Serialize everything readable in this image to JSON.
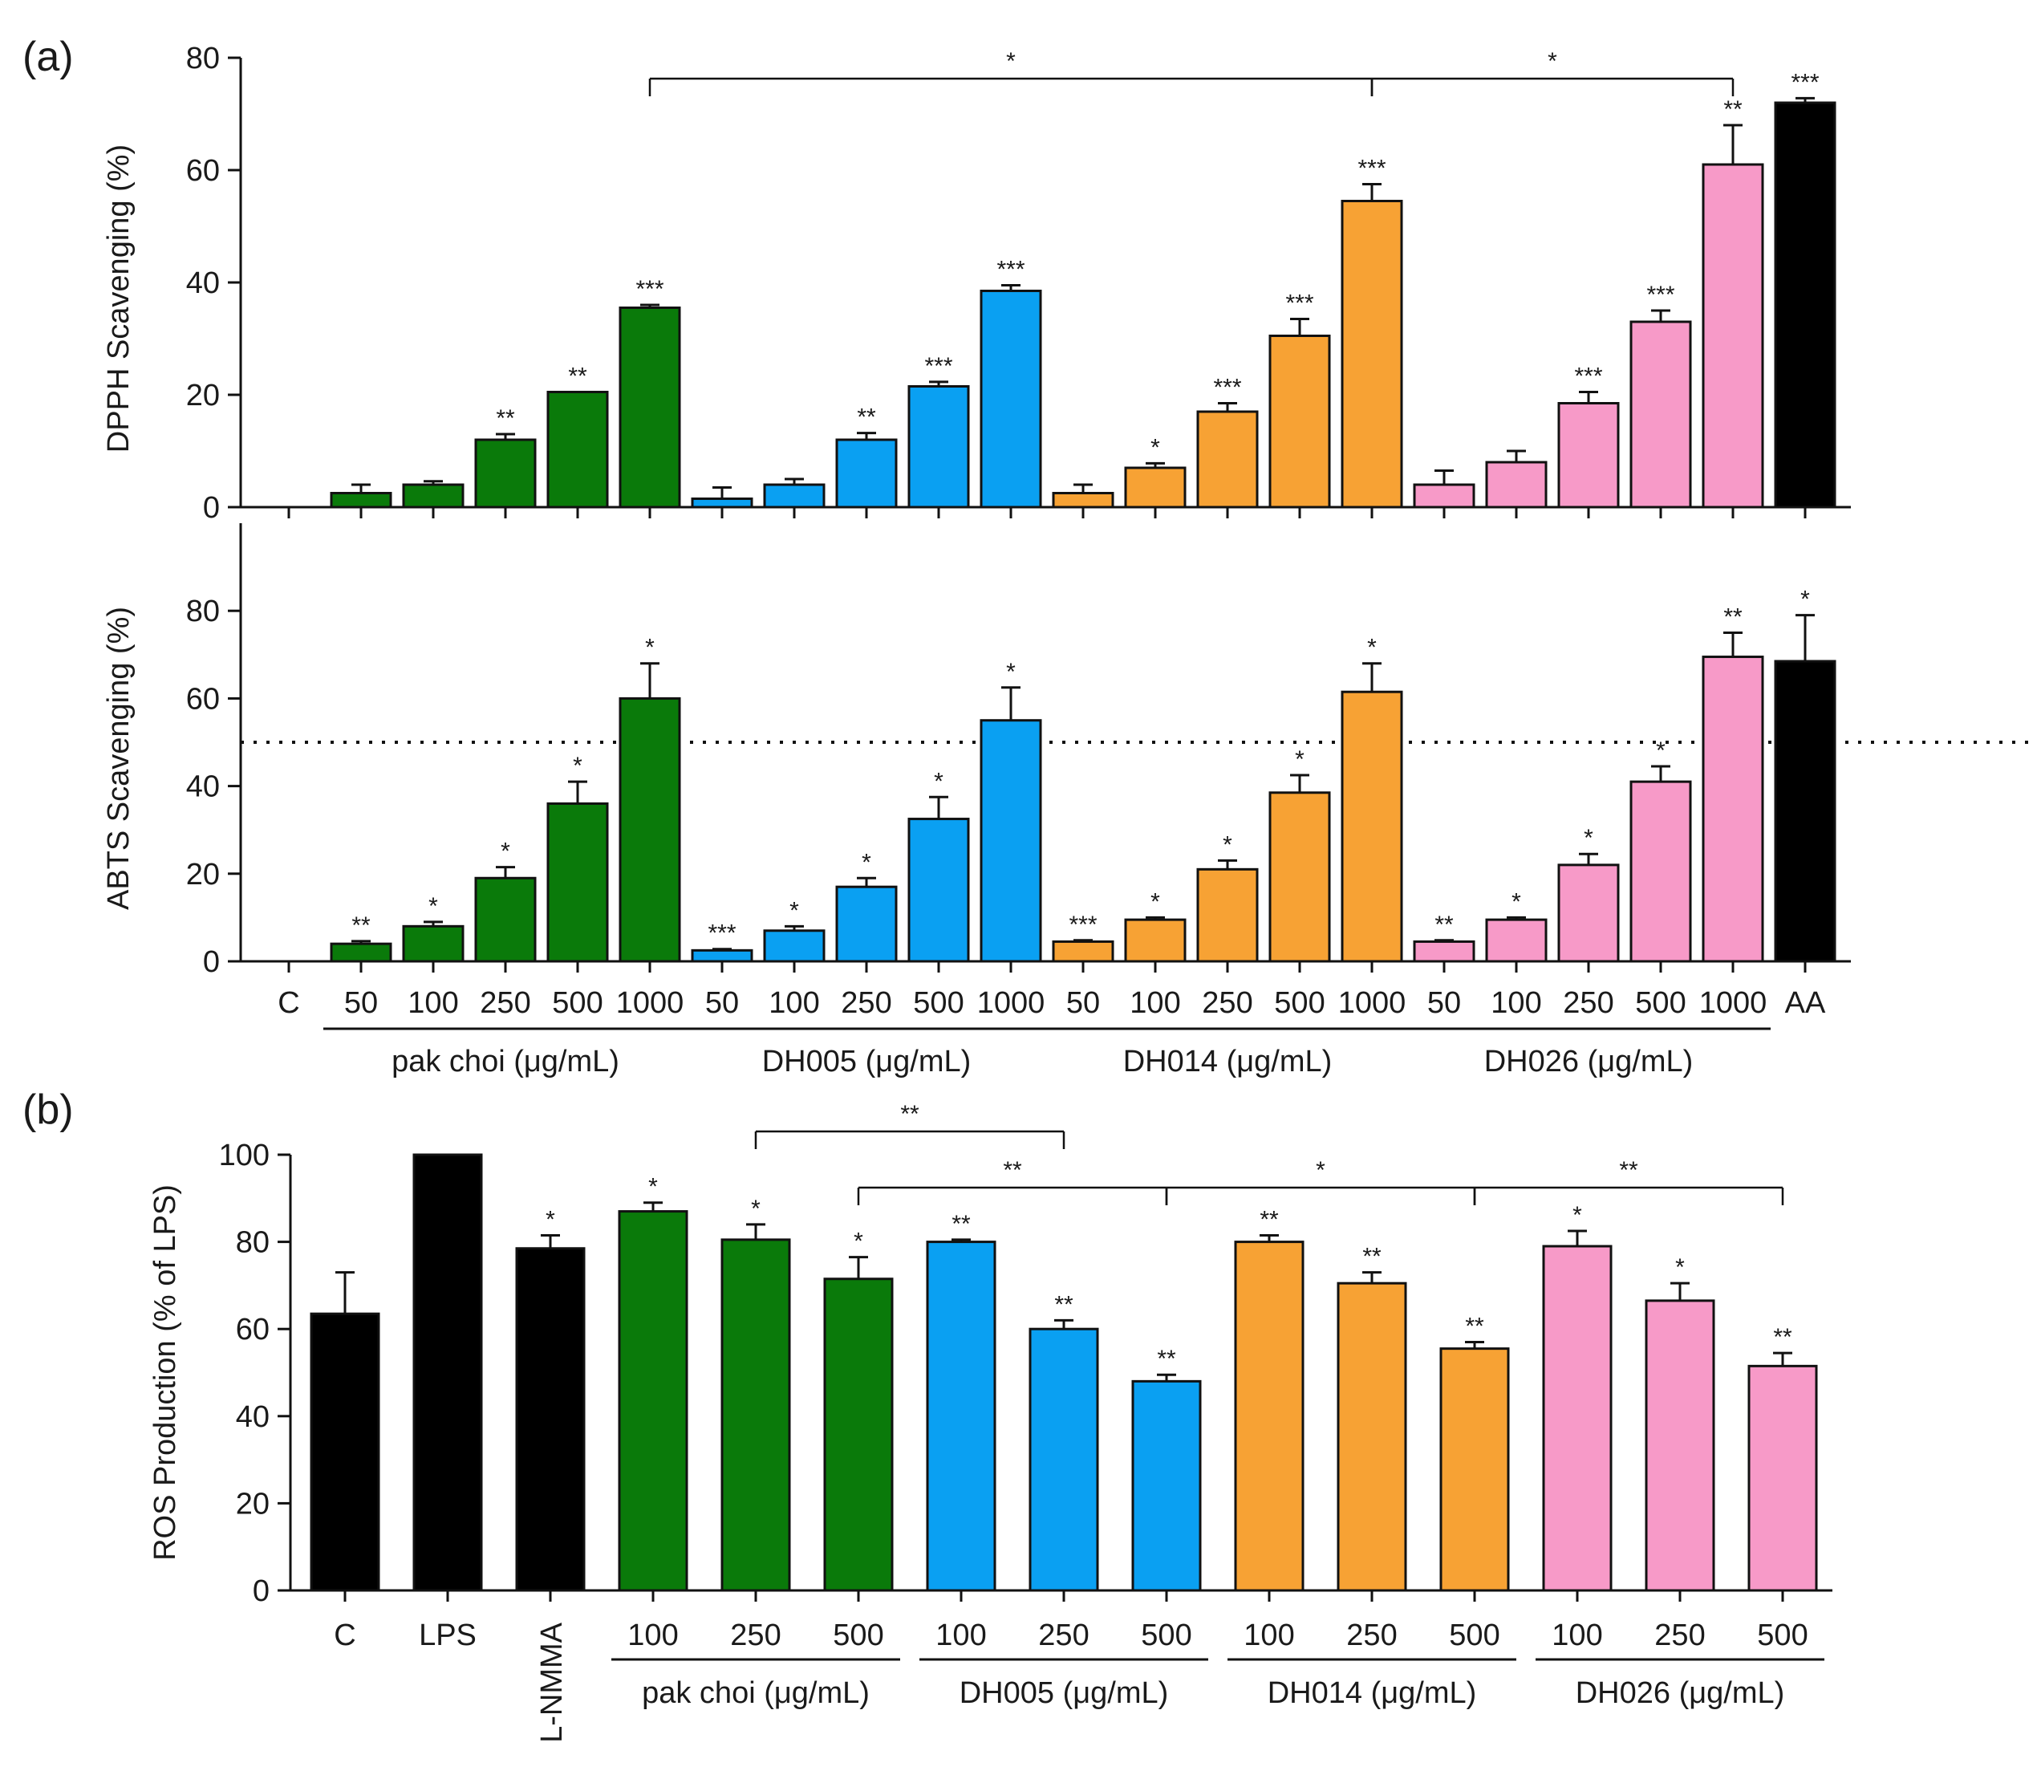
{
  "panel_labels": {
    "a": "(a)",
    "b": "(b)"
  },
  "colors": {
    "control": "#000000",
    "pak_choi": "#0a7a0a",
    "DH005": "#0aa0f2",
    "DH014": "#f7a234",
    "DH026": "#f79ac8"
  },
  "chart_data": [
    {
      "type": "bar",
      "panel": "a-top",
      "ylabel": "DPPH Scavenging  (%)",
      "ylim": [
        0,
        80
      ],
      "yticks": [
        "0",
        "20",
        "40",
        "60",
        "80"
      ],
      "categories": [
        "C",
        "50",
        "100",
        "250",
        "500",
        "1000",
        "50",
        "100",
        "250",
        "500",
        "1000",
        "50",
        "100",
        "250",
        "500",
        "1000",
        "50",
        "100",
        "250",
        "500",
        "1000",
        "AA"
      ],
      "values": [
        0,
        2.5,
        4,
        12,
        20.5,
        35.5,
        1.5,
        4,
        12,
        21.5,
        38.5,
        2.5,
        7,
        17,
        30.5,
        54.5,
        4,
        8,
        18.5,
        33,
        61,
        72
      ],
      "errors": [
        0,
        1.5,
        0.6,
        1,
        0,
        0.5,
        2,
        1,
        1.2,
        0.8,
        1,
        1.5,
        0.8,
        1.5,
        3,
        3,
        2.5,
        2,
        2,
        2,
        7,
        0.8
      ],
      "groups": [
        "control",
        "pak_choi",
        "pak_choi",
        "pak_choi",
        "pak_choi",
        "pak_choi",
        "DH005",
        "DH005",
        "DH005",
        "DH005",
        "DH005",
        "DH014",
        "DH014",
        "DH014",
        "DH014",
        "DH014",
        "DH026",
        "DH026",
        "DH026",
        "DH026",
        "DH026",
        "control"
      ],
      "significance": [
        "",
        "",
        "",
        "**",
        "**",
        "***",
        "",
        "",
        "**",
        "***",
        "***",
        "",
        "*",
        "***",
        "***",
        "***",
        "",
        "",
        "***",
        "***",
        "**",
        "***"
      ],
      "brackets": [
        {
          "from": 5,
          "to": 15,
          "label": "*"
        },
        {
          "from": 15,
          "to": 20,
          "label": "*"
        }
      ]
    },
    {
      "type": "bar",
      "panel": "a-bottom",
      "ylabel": "ABTS Scavenging  (%)",
      "ylim": [
        0,
        100
      ],
      "yticks": [
        "0",
        "20",
        "40",
        "60",
        "80"
      ],
      "reference_line": 50,
      "categories": [
        "C",
        "50",
        "100",
        "250",
        "500",
        "1000",
        "50",
        "100",
        "250",
        "500",
        "1000",
        "50",
        "100",
        "250",
        "500",
        "1000",
        "50",
        "100",
        "250",
        "500",
        "1000",
        "AA"
      ],
      "values": [
        0,
        4,
        8,
        19,
        36,
        60,
        2.5,
        7,
        17,
        32.5,
        55,
        4.5,
        9.5,
        21,
        38.5,
        61.5,
        4.5,
        9.5,
        22,
        41,
        69.5,
        68.5
      ],
      "errors": [
        0,
        0.6,
        1,
        2.5,
        5,
        8,
        0.3,
        1,
        2,
        5,
        7.5,
        0.3,
        0.5,
        2,
        4,
        6.5,
        0.3,
        0.5,
        2.5,
        3.5,
        5.5,
        10.5
      ],
      "groups": [
        "control",
        "pak_choi",
        "pak_choi",
        "pak_choi",
        "pak_choi",
        "pak_choi",
        "DH005",
        "DH005",
        "DH005",
        "DH005",
        "DH005",
        "DH014",
        "DH014",
        "DH014",
        "DH014",
        "DH014",
        "DH026",
        "DH026",
        "DH026",
        "DH026",
        "DH026",
        "control"
      ],
      "significance": [
        "",
        "**",
        "*",
        "*",
        "*",
        "*",
        "***",
        "*",
        "*",
        "*",
        "*",
        "***",
        "*",
        "*",
        "*",
        "*",
        "**",
        "*",
        "*",
        "*",
        "**",
        "*"
      ],
      "group_labels": [
        {
          "from": 1,
          "to": 5,
          "label": "pak choi (μg/mL)"
        },
        {
          "from": 6,
          "to": 10,
          "label": "DH005 (μg/mL)"
        },
        {
          "from": 11,
          "to": 15,
          "label": "DH014 (μg/mL)"
        },
        {
          "from": 16,
          "to": 20,
          "label": "DH026 (μg/mL)"
        }
      ]
    },
    {
      "type": "bar",
      "panel": "b",
      "ylabel": "ROS Production (% of LPS)",
      "ylim": [
        0,
        100
      ],
      "yticks": [
        "0",
        "20",
        "40",
        "60",
        "80",
        "100"
      ],
      "categories": [
        "C",
        "LPS",
        "L-NMMA",
        "100",
        "250",
        "500",
        "100",
        "250",
        "500",
        "100",
        "250",
        "500",
        "100",
        "250",
        "500"
      ],
      "values": [
        63.5,
        100,
        78.5,
        87,
        80.5,
        71.5,
        80,
        60,
        48,
        80,
        70.5,
        55.5,
        79,
        66.5,
        51.5
      ],
      "errors": [
        9.5,
        0,
        3,
        2,
        3.5,
        5,
        0.5,
        2,
        1.5,
        1.5,
        2.5,
        1.5,
        3.5,
        4,
        3
      ],
      "groups": [
        "control",
        "control",
        "control",
        "pak_choi",
        "pak_choi",
        "pak_choi",
        "DH005",
        "DH005",
        "DH005",
        "DH014",
        "DH014",
        "DH014",
        "DH026",
        "DH026",
        "DH026"
      ],
      "significance": [
        "",
        "",
        "*",
        "*",
        "*",
        "*",
        "**",
        "**",
        "**",
        "**",
        "**",
        "**",
        "*",
        "*",
        "**"
      ],
      "brackets": [
        {
          "from": 4,
          "to": 7,
          "label": "**"
        },
        {
          "from": 5,
          "to": 8,
          "label": "**"
        },
        {
          "from": 8,
          "to": 11,
          "label": "*"
        },
        {
          "from": 11,
          "to": 14,
          "label": "**"
        }
      ],
      "group_labels": [
        {
          "from": 3,
          "to": 5,
          "label": "pak choi (μg/mL)"
        },
        {
          "from": 6,
          "to": 8,
          "label": "DH005 (μg/mL)"
        },
        {
          "from": 9,
          "to": 11,
          "label": "DH014 (μg/mL)"
        },
        {
          "from": 12,
          "to": 14,
          "label": "DH026 (μg/mL)"
        }
      ]
    }
  ]
}
